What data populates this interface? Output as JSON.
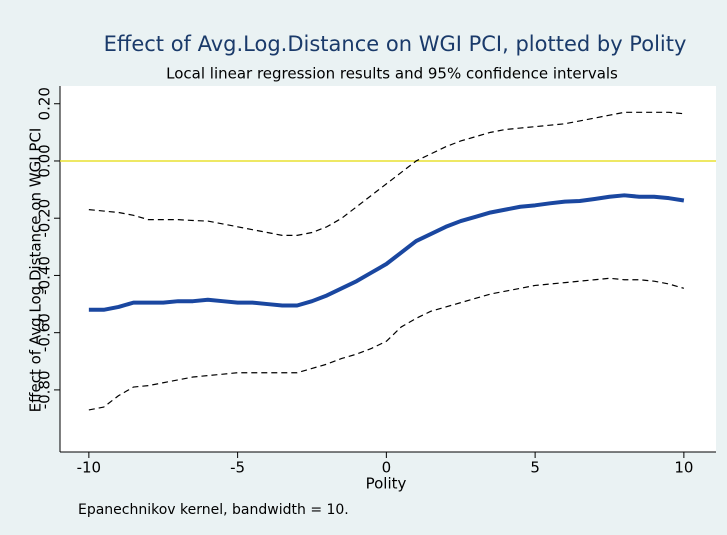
{
  "chart_data": {
    "type": "line",
    "title": "Effect of Avg.Log.Distance on WGI PCI, plotted by Polity",
    "subtitle": "Local linear regression results and 95% confidence intervals",
    "x_label": "Polity",
    "y_label": "Effect of Avg.Log.Distance on WGI PCI",
    "note": "Epanechnikov kernel, bandwidth = 10.",
    "x": [
      -10,
      -9.5,
      -9,
      -8.5,
      -8,
      -7.5,
      -7,
      -6.5,
      -6,
      -5.5,
      -5,
      -4.5,
      -4,
      -3.5,
      -3,
      -2.5,
      -2,
      -1.5,
      -1,
      -0.5,
      0,
      0.5,
      1,
      1.5,
      2,
      2.5,
      3,
      3.5,
      4,
      4.5,
      5,
      5.5,
      6,
      6.5,
      7,
      7.5,
      8,
      8.5,
      9,
      9.5,
      10
    ],
    "series": [
      {
        "color": "#1a47a0",
        "dash": false,
        "values": [
          -0.52,
          -0.52,
          -0.51,
          -0.495,
          -0.495,
          -0.495,
          -0.49,
          -0.49,
          -0.485,
          -0.49,
          -0.495,
          -0.495,
          -0.5,
          -0.505,
          -0.505,
          -0.49,
          -0.47,
          -0.445,
          -0.42,
          -0.39,
          -0.36,
          -0.32,
          -0.28,
          -0.255,
          -0.23,
          -0.21,
          -0.195,
          -0.18,
          -0.17,
          -0.16,
          -0.155,
          -0.148,
          -0.142,
          -0.14,
          -0.133,
          -0.125,
          -0.12,
          -0.125,
          -0.125,
          -0.13,
          -0.138
        ]
      },
      {
        "color": "#000000",
        "dash": true,
        "values": [
          -0.17,
          -0.175,
          -0.18,
          -0.19,
          -0.205,
          -0.205,
          -0.205,
          -0.208,
          -0.21,
          -0.22,
          -0.23,
          -0.24,
          -0.25,
          -0.26,
          -0.26,
          -0.25,
          -0.23,
          -0.2,
          -0.16,
          -0.12,
          -0.08,
          -0.04,
          0,
          0.025,
          0.05,
          0.07,
          0.085,
          0.1,
          0.11,
          0.115,
          0.12,
          0.125,
          0.13,
          0.14,
          0.15,
          0.16,
          0.17,
          0.17,
          0.17,
          0.17,
          0.165
        ]
      },
      {
        "color": "#000000",
        "dash": true,
        "values": [
          -0.87,
          -0.86,
          -0.82,
          -0.79,
          -0.785,
          -0.775,
          -0.765,
          -0.755,
          -0.75,
          -0.745,
          -0.74,
          -0.74,
          -0.74,
          -0.74,
          -0.74,
          -0.725,
          -0.71,
          -0.69,
          -0.675,
          -0.655,
          -0.63,
          -0.58,
          -0.55,
          -0.525,
          -0.51,
          -0.495,
          -0.48,
          -0.465,
          -0.455,
          -0.445,
          -0.435,
          -0.43,
          -0.425,
          -0.42,
          -0.415,
          -0.41,
          -0.415,
          -0.415,
          -0.42,
          -0.43,
          -0.445
        ]
      }
    ],
    "refline": {
      "value": 0,
      "color": "#e8e030"
    },
    "xlim": [
      -10.97,
      11.08
    ],
    "xticks": [
      -10,
      -5,
      0,
      5,
      10
    ],
    "ylim": [
      -1.017,
      0.262
    ],
    "yticks": [
      {
        "value": 0.2,
        "label": "0.20"
      },
      {
        "value": 0,
        "label": "0.00"
      },
      {
        "value": -0.2,
        "label": "-0.20"
      },
      {
        "value": -0.4,
        "label": "-0.40"
      },
      {
        "value": -0.6,
        "label": "-0.60"
      },
      {
        "value": -0.8,
        "label": "-0.80"
      }
    ]
  }
}
